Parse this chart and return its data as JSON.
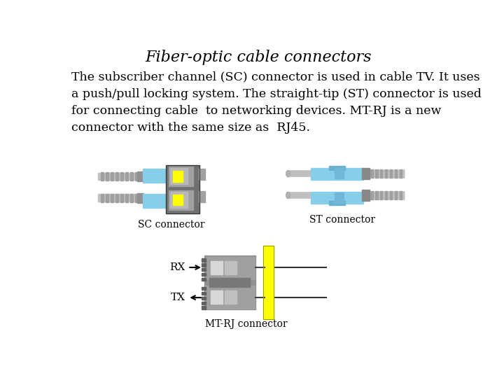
{
  "title": "Fiber-optic cable connectors",
  "body_text": "The subscriber channel (SC) connector is used in cable TV. It uses\na push/pull locking system. The straight-tip (ST) connector is used\nfor connecting cable  to networking devices. MT-RJ is a new\nconnector with the same size as  RJ45.",
  "sc_label": "SC connector",
  "st_label": "ST connector",
  "mt_label": "MT-RJ connector",
  "rx_label": "RX",
  "tx_label": "TX",
  "bg_color": "#ffffff",
  "title_color": "#000000",
  "body_color": "#000000",
  "title_fontsize": 16,
  "body_fontsize": 12.5,
  "label_fontsize": 10,
  "gray_dark": "#707070",
  "gray_mid": "#909090",
  "gray_light": "#b8b8b8",
  "blue_color": "#87CEEB",
  "yellow_color": "#ffff00",
  "cable_color": "#c0c0c0",
  "white": "#ffffff"
}
